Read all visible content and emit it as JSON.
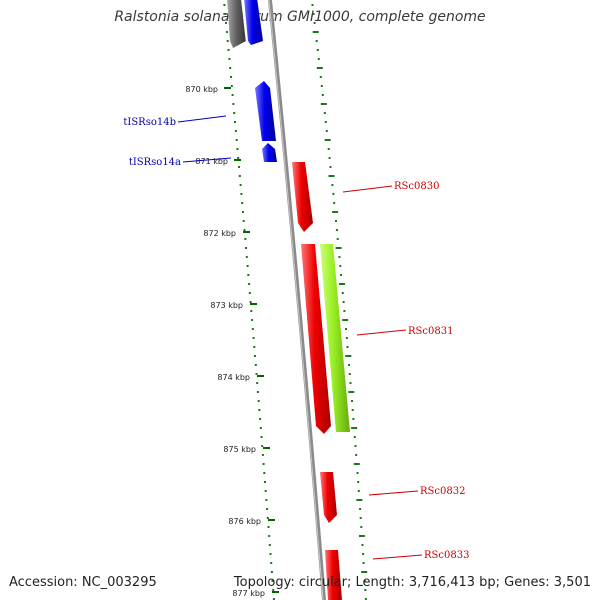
{
  "title": "Ralstonia solanacearum GMI1000, complete genome",
  "accession": "Accession: NC_003295",
  "stats": "Topology: circular; Length: 3,716,413 bp; Genes: 3,501",
  "colors": {
    "forward_gene": "#ee0000",
    "reverse_gene": "#88ee22",
    "rna_gene": "#0000ee",
    "gray_feature": "#666666",
    "backbone": "#888888",
    "gc_dots": "#1a7a1a",
    "tick": "#006600"
  },
  "ticks": [
    {
      "label": "870 kbp"
    },
    {
      "label": "871 kbp"
    },
    {
      "label": "872 kbp"
    },
    {
      "label": "873 kbp"
    },
    {
      "label": "874 kbp"
    },
    {
      "label": "875 kbp"
    },
    {
      "label": "876 kbp"
    },
    {
      "label": "877 kbp"
    }
  ],
  "genes": [
    {
      "name": "tISRso14b",
      "type": "rna"
    },
    {
      "name": "tISRso14a",
      "type": "rna"
    },
    {
      "name": "RSc0830",
      "type": "forward"
    },
    {
      "name": "RSc0831",
      "type": "forward"
    },
    {
      "name": "RSc0832",
      "type": "forward"
    },
    {
      "name": "RSc0833",
      "type": "forward"
    }
  ]
}
